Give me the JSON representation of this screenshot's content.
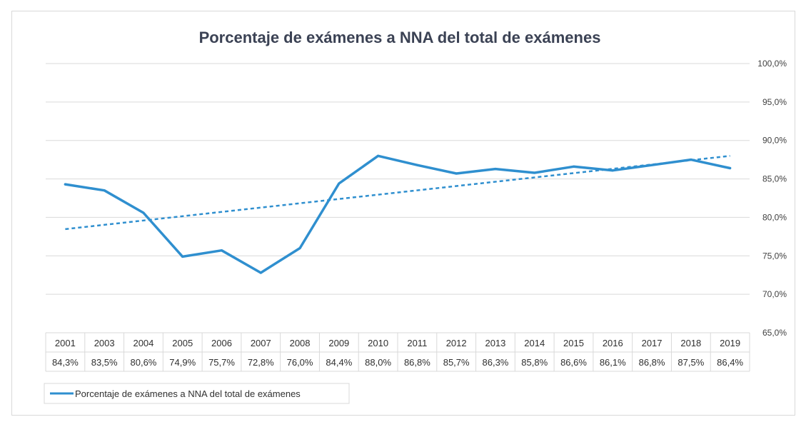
{
  "chart_data": {
    "type": "line",
    "title": "Porcentaje de exámenes a NNA del total de exámenes",
    "categories": [
      "2001",
      "2003",
      "2004",
      "2005",
      "2006",
      "2007",
      "2008",
      "2009",
      "2010",
      "2011",
      "2012",
      "2013",
      "2014",
      "2015",
      "2016",
      "2017",
      "2018",
      "2019"
    ],
    "series": [
      {
        "name": "Porcentaje de exámenes a NNA del total de exámenes",
        "values": [
          84.3,
          83.5,
          80.6,
          74.9,
          75.7,
          72.8,
          76.0,
          84.4,
          88.0,
          86.8,
          85.7,
          86.3,
          85.8,
          86.6,
          86.1,
          86.8,
          87.5,
          86.4
        ],
        "labels": [
          "84,3%",
          "83,5%",
          "80,6%",
          "74,9%",
          "75,7%",
          "72,8%",
          "76,0%",
          "84,4%",
          "88,0%",
          "86,8%",
          "85,7%",
          "86,3%",
          "85,8%",
          "86,6%",
          "86,1%",
          "86,8%",
          "87,5%",
          "86,4%"
        ],
        "color": "#2f8fcf"
      }
    ],
    "trendline": {
      "style": "dashed",
      "color": "#2f8fcf"
    },
    "ylim": [
      65,
      100
    ],
    "yticks": [
      65,
      70,
      75,
      80,
      85,
      90,
      95,
      100
    ],
    "ytick_labels": [
      "65,0%",
      "70,0%",
      "75,0%",
      "80,0%",
      "85,0%",
      "90,0%",
      "95,0%",
      "100,0%"
    ],
    "y_axis_position": "right",
    "grid": true,
    "data_table": true,
    "legend_position": "bottom-left",
    "colors": {
      "series": "#2f8fcf",
      "grid": "#d9d9d9",
      "table_border": "#d9d9d9",
      "title": "#3b4254"
    }
  }
}
